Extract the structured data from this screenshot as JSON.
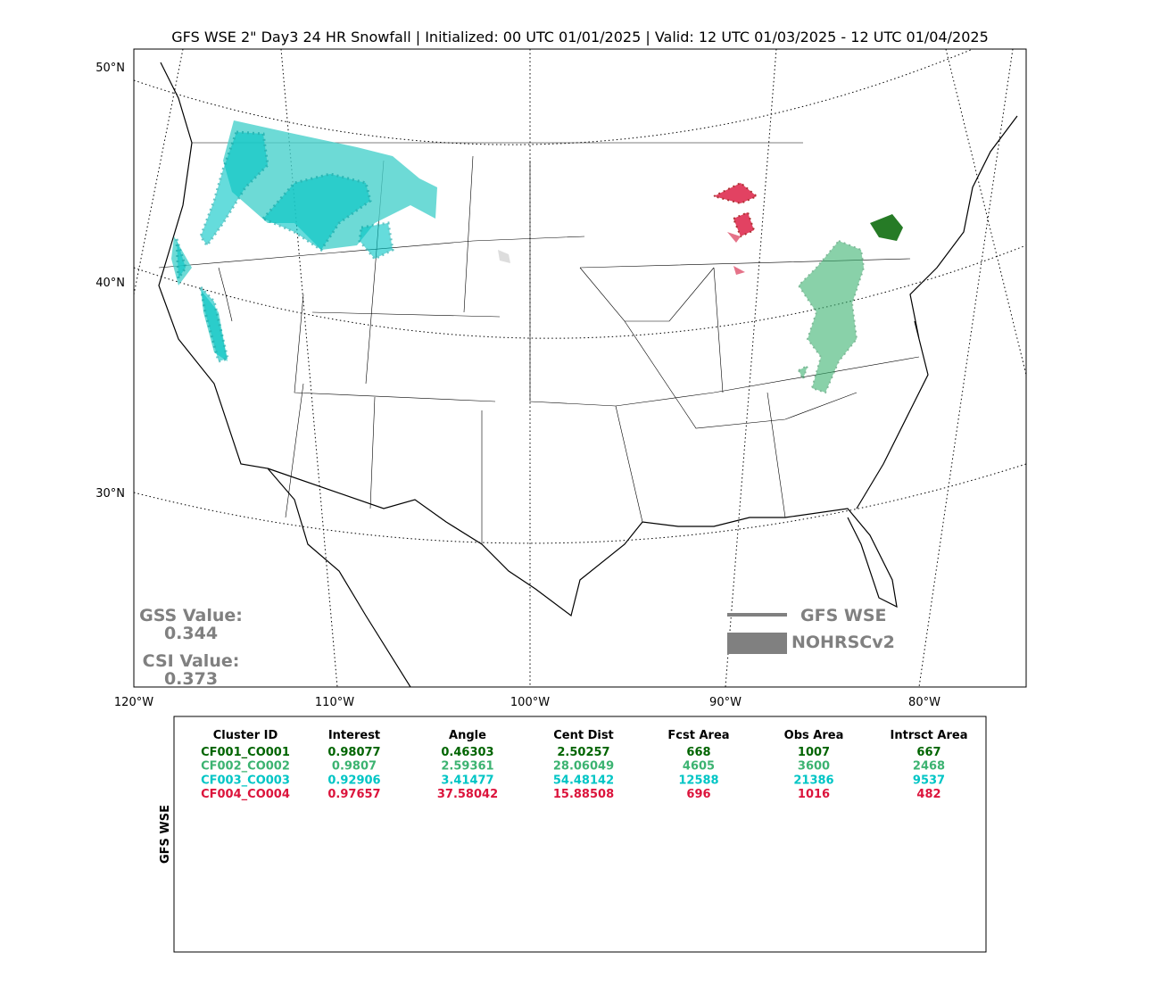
{
  "header": {
    "title": "GFS WSE 2\" Day3 24 HR Snowfall | Initialized: 00 UTC 01/01/2025 | Valid: 12 UTC 01/03/2025 - 12 UTC 01/04/2025"
  },
  "map": {
    "lat_labels": [
      "50°N",
      "40°N",
      "30°N"
    ],
    "lon_labels": [
      "120°W",
      "110°W",
      "100°W",
      "90°W",
      "80°W"
    ]
  },
  "scores": {
    "gss_label": "GSS Value:",
    "gss": 0.344,
    "csi_label": "CSI Value:",
    "csi": 0.373
  },
  "legend": {
    "forecast": "GFS WSE",
    "observed": "NOHRSCv2"
  },
  "table": {
    "side_label": "GFS WSE",
    "columns": [
      "Cluster ID",
      "Interest",
      "Angle",
      "Cent Dist",
      "Fcst Area",
      "Obs Area",
      "Intrsct Area"
    ],
    "rows": [
      [
        "CF001_CO001",
        0.98077,
        0.46303,
        2.50257,
        668,
        1007,
        667
      ],
      [
        "CF002_CO002",
        0.9807,
        2.59361,
        28.06049,
        4605,
        3600,
        2468
      ],
      [
        "CF003_CO003",
        0.92906,
        3.41477,
        54.48142,
        12588,
        21386,
        9537
      ],
      [
        "CF004_CO004",
        0.97657,
        37.58042,
        15.88508,
        696,
        1016,
        482
      ]
    ],
    "row_colors": [
      "#006400",
      "#3cb371",
      "#00c5c5",
      "#dc143c"
    ]
  }
}
